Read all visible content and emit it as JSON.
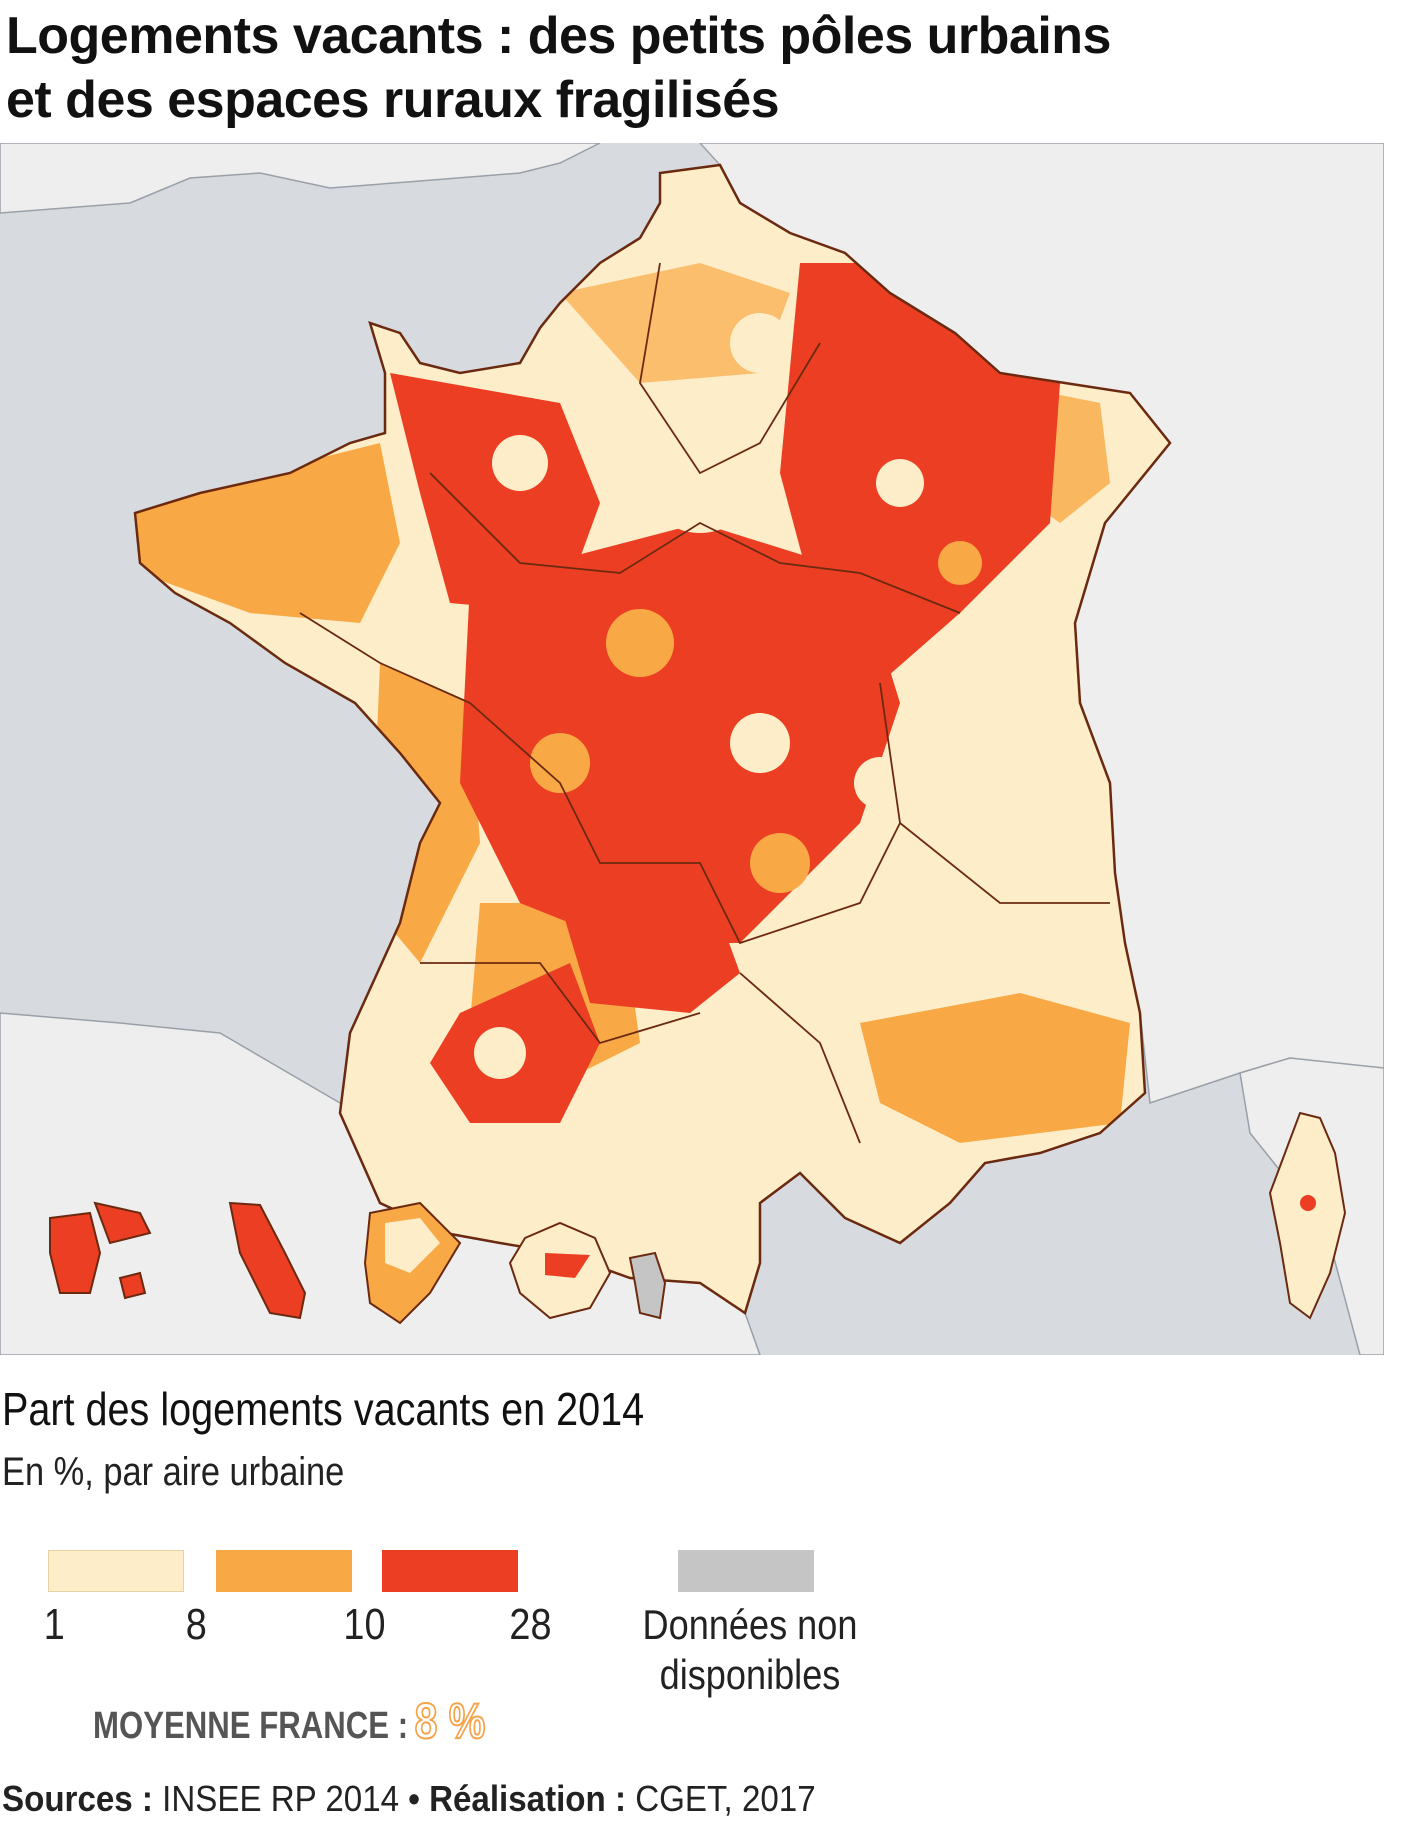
{
  "title": {
    "line1": "Logements vacants : des petits pôles urbains",
    "line2": "et des espaces ruraux fragilisés"
  },
  "map": {
    "regions_shown": [
      "France métropolitaine",
      "Corse",
      "Guadeloupe",
      "Martinique",
      "Guyane",
      "La Réunion",
      "Mayotte"
    ],
    "background_colors": {
      "sea": "#d7dbe0",
      "foreign_land": "#eeeeee"
    },
    "dominant_class_by_area": {
      "Nord-Ouest littoral": "1-8",
      "Bretagne intérieure": "8-10",
      "Centre et Massif central": "10-28",
      "Grand Est": "10-28",
      "Île-de-France": "1-8",
      "Sud-Ouest": "1-8",
      "Rhône-Alpes": "1-8",
      "Provence littorale": "8-10",
      "Corse": "1-8",
      "Guadeloupe": "10-28",
      "Martinique": "10-28",
      "Guyane": "8-10",
      "La Réunion": "1-8",
      "Mayotte": "Données non disponibles"
    }
  },
  "legend": {
    "title": "Part des logements vacants en 2014",
    "subtitle": "En %, par aire urbaine",
    "classes": [
      {
        "min": "1",
        "max": "8",
        "color": "#fdedc9"
      },
      {
        "min": "8",
        "max": "10",
        "color": "#f8a945"
      },
      {
        "min": "10",
        "max": "28",
        "color": "#ec3e23"
      }
    ],
    "ticks": [
      "1",
      "8",
      "10",
      "28"
    ],
    "na": {
      "line1": "Données non",
      "line2": "disponibles",
      "color": "#c5c5c5"
    }
  },
  "average": {
    "label": "MOYENNE FRANCE :",
    "value": "8 %",
    "color": "#f5a34a"
  },
  "sources": {
    "sources_label": "Sources :",
    "sources_value": "INSEE RP 2014",
    "separator": "•",
    "credit_label": "Réalisation :",
    "credit_value": "CGET, 2017"
  }
}
